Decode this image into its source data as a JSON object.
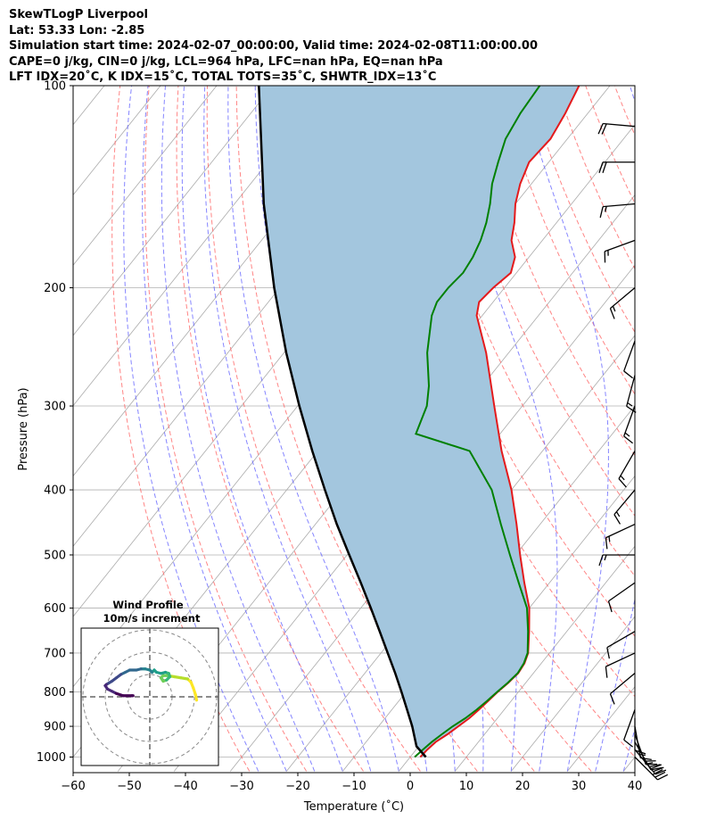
{
  "header": {
    "line1": "SkewTLogP Liverpool",
    "line2": "Lat: 53.33   Lon: -2.85",
    "line3": "Simulation start time: 2024-02-07_00:00:00, Valid time: 2024-02-08T11:00:00.00",
    "line4": "CAPE=0 j/kg, CIN=0 j/kg, LCL=964 hPa, LFC=nan hPa, EQ=nan hPa",
    "line5": "LFT IDX=20˚C, K IDX=15˚C, TOTAL TOTS=35˚C, SHWTR_IDX=13˚C"
  },
  "chart_data": [
    {
      "type": "line",
      "subtype": "skew-t-log-p",
      "xlabel": "Temperature (˚C)",
      "ylabel": "Pressure (hPa)",
      "xlim": [
        -60,
        40
      ],
      "ylim": [
        1050,
        100
      ],
      "y_scale": "log",
      "grid": true,
      "x_ticks": [
        "−60",
        "−50",
        "−40",
        "−30",
        "−20",
        "−10",
        "0",
        "10",
        "20",
        "30",
        "40"
      ],
      "y_ticks": [
        "1000",
        "900",
        "800",
        "700",
        "600",
        "500",
        "400",
        "300",
        "200",
        "100"
      ],
      "colors": {
        "temperature": "#e41a1c",
        "dewpoint": "#008000",
        "parcel": "#000000",
        "shade": "#a3c6de",
        "isotherm": "#aaaaaa",
        "dry_adiabat": "#ff6666",
        "moist_adiabat": "#6666ff"
      },
      "series": [
        {
          "key": "temperature",
          "points": [
            [
              1000,
              1.8
            ],
            [
              975,
              2.0
            ],
            [
              950,
              2.4
            ],
            [
              925,
              3.4
            ],
            [
              900,
              4.2
            ],
            [
              875,
              5.0
            ],
            [
              850,
              5.5
            ],
            [
              825,
              5.9
            ],
            [
              800,
              6.3
            ],
            [
              775,
              6.9
            ],
            [
              750,
              7.3
            ],
            [
              725,
              7.0
            ],
            [
              700,
              6.2
            ],
            [
              650,
              3.3
            ],
            [
              600,
              0.0
            ],
            [
              550,
              -4.5
            ],
            [
              500,
              -9.2
            ],
            [
              450,
              -14.2
            ],
            [
              400,
              -20.0
            ],
            [
              350,
              -27.3
            ],
            [
              300,
              -35.0
            ],
            [
              250,
              -44.0
            ],
            [
              220,
              -51.0
            ],
            [
              210,
              -52.5
            ],
            [
              200,
              -52.0
            ],
            [
              190,
              -51.0
            ],
            [
              180,
              -52.5
            ],
            [
              170,
              -55.5
            ],
            [
              160,
              -57.5
            ],
            [
              150,
              -60.0
            ],
            [
              140,
              -62.0
            ],
            [
              130,
              -63.5
            ],
            [
              120,
              -63.0
            ],
            [
              110,
              -64.0
            ],
            [
              100,
              -65.5
            ]
          ]
        },
        {
          "key": "dewpoint",
          "points": [
            [
              1000,
              0.8
            ],
            [
              975,
              1.2
            ],
            [
              950,
              1.7
            ],
            [
              925,
              2.4
            ],
            [
              900,
              3.2
            ],
            [
              875,
              4.3
            ],
            [
              850,
              5.1
            ],
            [
              825,
              5.7
            ],
            [
              800,
              6.2
            ],
            [
              775,
              6.8
            ],
            [
              750,
              7.2
            ],
            [
              725,
              6.9
            ],
            [
              700,
              6.1
            ],
            [
              650,
              3.1
            ],
            [
              600,
              -0.4
            ],
            [
              550,
              -5.5
            ],
            [
              500,
              -11.0
            ],
            [
              450,
              -17.0
            ],
            [
              400,
              -23.5
            ],
            [
              350,
              -33.0
            ],
            [
              330,
              -45.0
            ],
            [
              300,
              -47.0
            ],
            [
              280,
              -49.5
            ],
            [
              250,
              -54.5
            ],
            [
              220,
              -59.0
            ],
            [
              210,
              -60.0
            ],
            [
              200,
              -60.0
            ],
            [
              190,
              -59.5
            ],
            [
              180,
              -60.0
            ],
            [
              170,
              -61.0
            ],
            [
              160,
              -62.5
            ],
            [
              150,
              -64.5
            ],
            [
              140,
              -67.0
            ],
            [
              130,
              -69.0
            ],
            [
              120,
              -71.0
            ],
            [
              110,
              -72.0
            ],
            [
              100,
              -72.5
            ]
          ]
        },
        {
          "key": "parcel",
          "points": [
            [
              1000,
              2.8
            ],
            [
              964,
              -0.4
            ],
            [
              900,
              -4.0
            ],
            [
              850,
              -7.3
            ],
            [
              800,
              -10.8
            ],
            [
              750,
              -14.6
            ],
            [
              700,
              -18.8
            ],
            [
              650,
              -23.3
            ],
            [
              600,
              -28.2
            ],
            [
              550,
              -33.6
            ],
            [
              500,
              -39.6
            ],
            [
              450,
              -46.2
            ],
            [
              400,
              -53.2
            ],
            [
              350,
              -61.0
            ],
            [
              300,
              -69.7
            ],
            [
              250,
              -79.6
            ],
            [
              200,
              -91.0
            ],
            [
              150,
              -104.8
            ],
            [
              100,
              -122.5
            ]
          ]
        }
      ],
      "wind_barbs": [
        {
          "p": 1000,
          "speed_kt": 30,
          "dir": 135
        },
        {
          "p": 975,
          "speed_kt": 30,
          "dir": 140
        },
        {
          "p": 950,
          "speed_kt": 25,
          "dir": 150
        },
        {
          "p": 925,
          "speed_kt": 20,
          "dir": 160
        },
        {
          "p": 900,
          "speed_kt": 15,
          "dir": 170
        },
        {
          "p": 875,
          "speed_kt": 10,
          "dir": 180
        },
        {
          "p": 850,
          "speed_kt": 10,
          "dir": 200
        },
        {
          "p": 750,
          "speed_kt": 10,
          "dir": 230
        },
        {
          "p": 700,
          "speed_kt": 10,
          "dir": 245
        },
        {
          "p": 650,
          "speed_kt": 10,
          "dir": 240
        },
        {
          "p": 550,
          "speed_kt": 10,
          "dir": 235
        },
        {
          "p": 500,
          "speed_kt": 15,
          "dir": 270
        },
        {
          "p": 450,
          "speed_kt": 15,
          "dir": 245
        },
        {
          "p": 400,
          "speed_kt": 15,
          "dir": 220
        },
        {
          "p": 350,
          "speed_kt": 15,
          "dir": 210
        },
        {
          "p": 300,
          "speed_kt": 15,
          "dir": 200
        },
        {
          "p": 270,
          "speed_kt": 15,
          "dir": 195
        },
        {
          "p": 240,
          "speed_kt": 10,
          "dir": 200
        },
        {
          "p": 200,
          "speed_kt": 15,
          "dir": 230
        },
        {
          "p": 170,
          "speed_kt": 15,
          "dir": 250
        },
        {
          "p": 150,
          "speed_kt": 15,
          "dir": 265
        },
        {
          "p": 130,
          "speed_kt": 20,
          "dir": 270
        },
        {
          "p": 115,
          "speed_kt": 20,
          "dir": 275
        }
      ]
    },
    {
      "type": "line",
      "subtype": "hodograph",
      "title": "Wind Profile",
      "subtitle": "10m/s increment",
      "rings": [
        10,
        20,
        30
      ],
      "grid": true,
      "colors": {
        "ring": "#888888",
        "axis": "#666666"
      },
      "trace": [
        [
          21,
          -1.5
        ],
        [
          20.5,
          1
        ],
        [
          19.5,
          4
        ],
        [
          18.5,
          6.5
        ],
        [
          17,
          8
        ],
        [
          14,
          8.5
        ],
        [
          11,
          9
        ],
        [
          8,
          9.5
        ],
        [
          6,
          9.5
        ],
        [
          5,
          8.5
        ],
        [
          6,
          7
        ],
        [
          7.5,
          7.5
        ],
        [
          9,
          9
        ],
        [
          8.5,
          10.5
        ],
        [
          7,
          11
        ],
        [
          5,
          10.5
        ],
        [
          3,
          11
        ],
        [
          2,
          12
        ],
        [
          1,
          11
        ],
        [
          0,
          12
        ],
        [
          -2,
          12.5
        ],
        [
          -4,
          12.5
        ],
        [
          -6,
          12
        ],
        [
          -9,
          12
        ],
        [
          -11,
          11
        ],
        [
          -13,
          10
        ],
        [
          -15,
          8.5
        ],
        [
          -17,
          7
        ],
        [
          -19.5,
          5.5
        ],
        [
          -20,
          5
        ],
        [
          -19,
          3.5
        ],
        [
          -17,
          2.5
        ],
        [
          -15,
          1.5
        ],
        [
          -12,
          0.5
        ],
        [
          -8,
          0.5
        ],
        [
          -7.5,
          0.5
        ]
      ]
    }
  ]
}
